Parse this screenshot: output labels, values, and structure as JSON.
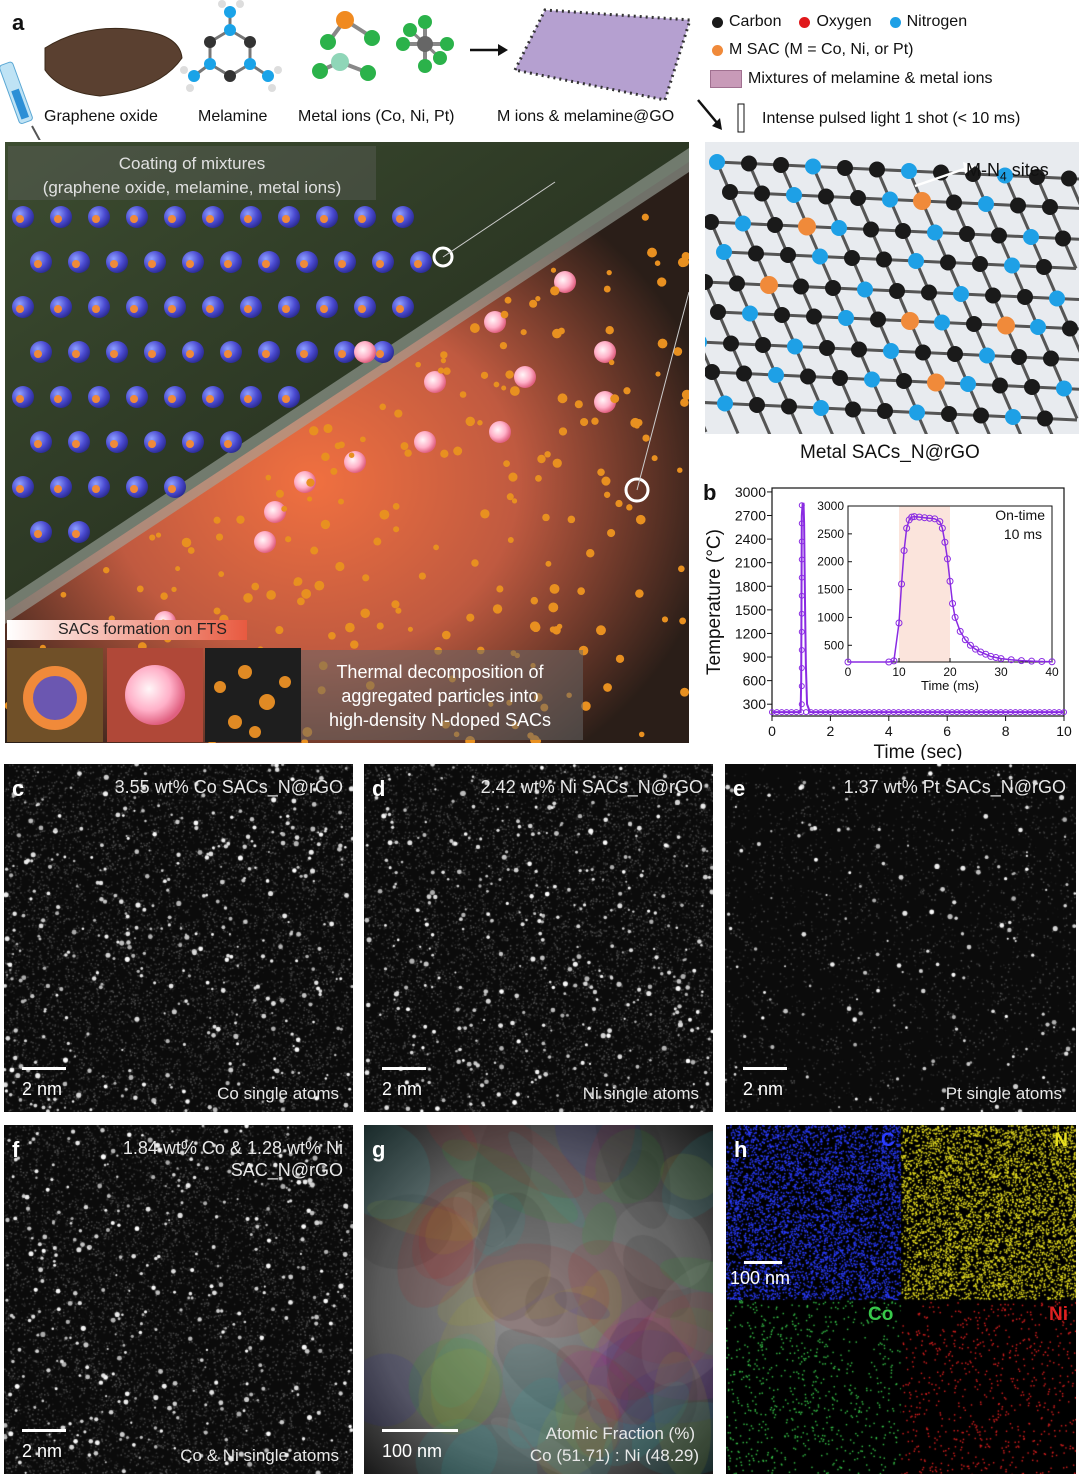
{
  "panel_a": {
    "label": "a",
    "top_items": [
      "Graphene oxide",
      "Melamine",
      "Metal ions (Co, Ni, Pt)",
      "M ions & melamine@GO"
    ],
    "legend": {
      "carbon": "Carbon",
      "oxygen": "Oxygen",
      "nitrogen": "Nitrogen",
      "msac": "M SAC (M = Co, Ni, or Pt)",
      "mixtures": "Mixtures of melamine & metal ions",
      "pulse": "Intense pulsed light 1 shot (< 10 ms)"
    },
    "coating_text": [
      "Coating of mixtures",
      "(graphene oxide, melamine, metal ions)"
    ],
    "fts_text": "SACs formation on FTS",
    "thermal_text": [
      "Thermal decomposition of",
      "aggregated particles into",
      "high-density N-doped SACs"
    ],
    "mn4_label": "M-N",
    "mn4_sub": "4",
    "mn4_suffix": " sites",
    "result_caption": "Metal SACs_N@rGO",
    "colors": {
      "carbon": "#1a1a1a",
      "oxygen": "#e0181b",
      "nitrogen": "#1ea0e6",
      "msac": "#f08a3a",
      "trace": "#8a2be2"
    }
  },
  "panel_b": {
    "label": "b",
    "inset_annotation": [
      "On-time",
      "10 ms"
    ]
  },
  "chart_data": [
    {
      "type": "line",
      "title": "",
      "xlabel": "Time (sec)",
      "ylabel": "Temperature (°C)",
      "xlim": [
        0,
        10
      ],
      "ylim": [
        150,
        3050
      ],
      "xticks": [
        0,
        2,
        4,
        6,
        8,
        10
      ],
      "yticks": [
        300,
        600,
        900,
        1200,
        1500,
        1800,
        2100,
        2400,
        2700,
        3000
      ],
      "series": [
        {
          "x": [
            0,
            0.9,
            0.98,
            1.0,
            1.02,
            1.05,
            1.08,
            1.1,
            1.13,
            1.16,
            1.2,
            1.3,
            2,
            4,
            6,
            8,
            10
          ],
          "y": [
            200,
            200,
            200,
            600,
            2700,
            2850,
            2850,
            2600,
            1600,
            800,
            300,
            200,
            200,
            200,
            200,
            200,
            200
          ]
        }
      ]
    },
    {
      "type": "line",
      "title": "",
      "xlabel": "Time (ms)",
      "ylabel": "",
      "xlim": [
        0,
        40
      ],
      "ylim": [
        200,
        3000
      ],
      "xticks": [
        0,
        10,
        20,
        30,
        40
      ],
      "yticks": [
        500,
        1000,
        1500,
        2000,
        2500,
        3000
      ],
      "shaded_region": [
        10,
        20
      ],
      "series": [
        {
          "x": [
            0,
            8,
            9,
            10,
            10.5,
            11,
            11.5,
            12,
            12.5,
            13,
            14,
            15,
            16,
            17,
            18,
            18.5,
            19,
            19.5,
            20,
            20.5,
            21,
            22,
            23,
            24,
            25,
            26,
            27,
            28,
            29,
            30,
            32,
            34,
            36,
            38,
            40
          ],
          "y": [
            200,
            200,
            220,
            900,
            1600,
            2200,
            2600,
            2750,
            2800,
            2810,
            2800,
            2790,
            2780,
            2770,
            2720,
            2600,
            2350,
            2050,
            1650,
            1250,
            1000,
            750,
            600,
            500,
            430,
            380,
            340,
            300,
            280,
            260,
            240,
            225,
            215,
            210,
            205
          ]
        }
      ]
    }
  ],
  "em_panels": [
    {
      "label": "c",
      "title": [
        "3.55 wt% Co SACs_N@rGO"
      ],
      "scale": "2 nm",
      "caption": "Co single atoms"
    },
    {
      "label": "d",
      "title": [
        "2.42 wt% Ni SACs_N@rGO"
      ],
      "scale": "2 nm",
      "caption": "Ni single atoms"
    },
    {
      "label": "e",
      "title": [
        "1.37 wt% Pt SACs_N@rGO"
      ],
      "scale": "2 nm",
      "caption": "Pt single atoms"
    },
    {
      "label": "f",
      "title": [
        "1.84 wt% Co & 1.28 wt% Ni",
        "SAC_N@rGO"
      ],
      "scale": "2 nm",
      "caption": "Co & Ni single atoms"
    },
    {
      "label": "g",
      "title": [],
      "scale": "100 nm",
      "caption": "Atomic Fraction (%)",
      "caption2": "Co (51.71) : Ni (48.29)"
    }
  ],
  "panel_h": {
    "label": "h",
    "maps": [
      {
        "element": "C",
        "color": "#2a3cff"
      },
      {
        "element": "N",
        "color": "#e8e020"
      },
      {
        "element": "Co",
        "color": "#38c84a"
      },
      {
        "element": "Ni",
        "color": "#e02020"
      }
    ],
    "scale": "100 nm"
  }
}
